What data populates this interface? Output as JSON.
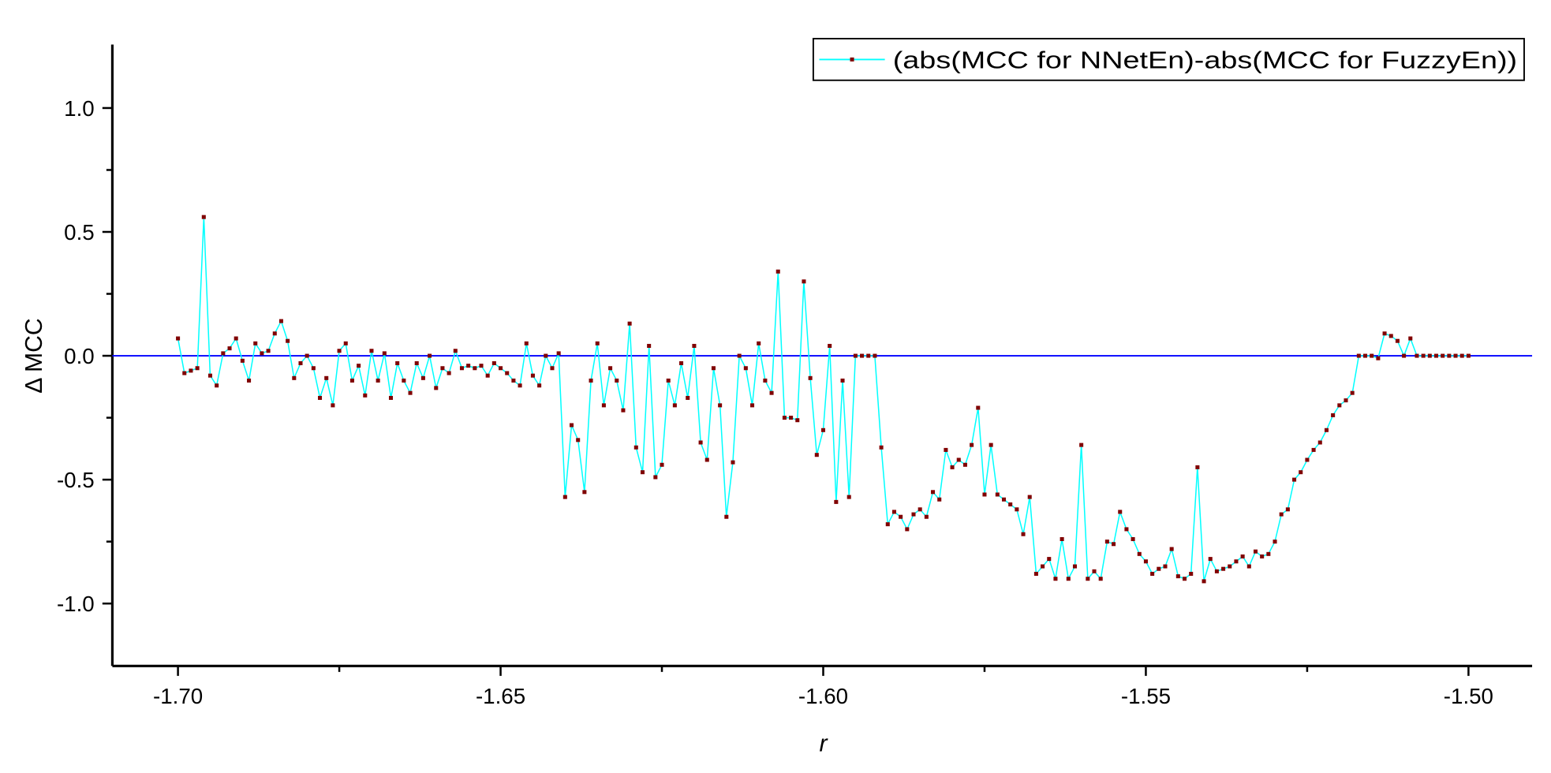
{
  "chart_data": {
    "type": "line",
    "title": "",
    "xlabel": "r",
    "ylabel": "Δ MCC",
    "xlim": [
      -1.71,
      -1.49
    ],
    "ylim": [
      -1.25,
      1.25
    ],
    "xticks": [
      -1.7,
      -1.65,
      -1.6,
      -1.55,
      -1.5
    ],
    "xtick_labels": [
      "-1.70",
      "-1.65",
      "-1.60",
      "-1.55",
      "-1.50"
    ],
    "yticks": [
      -1.0,
      -0.5,
      0.0,
      0.5,
      1.0
    ],
    "ytick_labels": [
      "-1.0",
      "-0.5",
      "0.0",
      "0.5",
      "1.0"
    ],
    "grid": false,
    "legend_position": "top-right",
    "reference_line": {
      "y": 0,
      "color": "#0000ff"
    },
    "series": [
      {
        "name": "(abs(MCC for NNetEn)-abs(MCC for FuzzyEn))",
        "line_color": "#00ffff",
        "marker_color": "#800000",
        "points": [
          [
            -1.7,
            0.07
          ],
          [
            -1.699,
            -0.07
          ],
          [
            -1.698,
            -0.06
          ],
          [
            -1.697,
            -0.05
          ],
          [
            -1.696,
            0.56
          ],
          [
            -1.695,
            -0.08
          ],
          [
            -1.694,
            -0.12
          ],
          [
            -1.693,
            0.01
          ],
          [
            -1.692,
            0.03
          ],
          [
            -1.691,
            0.07
          ],
          [
            -1.69,
            -0.02
          ],
          [
            -1.689,
            -0.1
          ],
          [
            -1.688,
            0.05
          ],
          [
            -1.687,
            0.01
          ],
          [
            -1.686,
            0.02
          ],
          [
            -1.685,
            0.09
          ],
          [
            -1.684,
            0.14
          ],
          [
            -1.683,
            0.06
          ],
          [
            -1.682,
            -0.09
          ],
          [
            -1.681,
            -0.03
          ],
          [
            -1.68,
            0.0
          ],
          [
            -1.679,
            -0.05
          ],
          [
            -1.678,
            -0.17
          ],
          [
            -1.677,
            -0.09
          ],
          [
            -1.676,
            -0.2
          ],
          [
            -1.675,
            0.02
          ],
          [
            -1.674,
            0.05
          ],
          [
            -1.673,
            -0.1
          ],
          [
            -1.672,
            -0.04
          ],
          [
            -1.671,
            -0.16
          ],
          [
            -1.67,
            0.02
          ],
          [
            -1.669,
            -0.1
          ],
          [
            -1.668,
            0.01
          ],
          [
            -1.667,
            -0.17
          ],
          [
            -1.666,
            -0.03
          ],
          [
            -1.665,
            -0.1
          ],
          [
            -1.664,
            -0.15
          ],
          [
            -1.663,
            -0.03
          ],
          [
            -1.662,
            -0.09
          ],
          [
            -1.661,
            0.0
          ],
          [
            -1.66,
            -0.13
          ],
          [
            -1.659,
            -0.05
          ],
          [
            -1.658,
            -0.07
          ],
          [
            -1.657,
            0.02
          ],
          [
            -1.656,
            -0.05
          ],
          [
            -1.655,
            -0.04
          ],
          [
            -1.654,
            -0.05
          ],
          [
            -1.653,
            -0.04
          ],
          [
            -1.652,
            -0.08
          ],
          [
            -1.651,
            -0.03
          ],
          [
            -1.65,
            -0.05
          ],
          [
            -1.649,
            -0.07
          ],
          [
            -1.648,
            -0.1
          ],
          [
            -1.647,
            -0.12
          ],
          [
            -1.646,
            0.05
          ],
          [
            -1.645,
            -0.08
          ],
          [
            -1.644,
            -0.12
          ],
          [
            -1.643,
            0.0
          ],
          [
            -1.642,
            -0.05
          ],
          [
            -1.641,
            0.01
          ],
          [
            -1.64,
            -0.57
          ],
          [
            -1.639,
            -0.28
          ],
          [
            -1.638,
            -0.34
          ],
          [
            -1.637,
            -0.55
          ],
          [
            -1.636,
            -0.1
          ],
          [
            -1.635,
            0.05
          ],
          [
            -1.634,
            -0.2
          ],
          [
            -1.633,
            -0.05
          ],
          [
            -1.632,
            -0.1
          ],
          [
            -1.631,
            -0.22
          ],
          [
            -1.63,
            0.13
          ],
          [
            -1.629,
            -0.37
          ],
          [
            -1.628,
            -0.47
          ],
          [
            -1.627,
            0.04
          ],
          [
            -1.626,
            -0.49
          ],
          [
            -1.625,
            -0.44
          ],
          [
            -1.624,
            -0.1
          ],
          [
            -1.623,
            -0.2
          ],
          [
            -1.622,
            -0.03
          ],
          [
            -1.621,
            -0.17
          ],
          [
            -1.62,
            0.04
          ],
          [
            -1.619,
            -0.35
          ],
          [
            -1.618,
            -0.42
          ],
          [
            -1.617,
            -0.05
          ],
          [
            -1.616,
            -0.2
          ],
          [
            -1.615,
            -0.65
          ],
          [
            -1.614,
            -0.43
          ],
          [
            -1.613,
            0.0
          ],
          [
            -1.612,
            -0.05
          ],
          [
            -1.611,
            -0.2
          ],
          [
            -1.61,
            0.05
          ],
          [
            -1.609,
            -0.1
          ],
          [
            -1.608,
            -0.15
          ],
          [
            -1.607,
            0.34
          ],
          [
            -1.606,
            -0.25
          ],
          [
            -1.605,
            -0.25
          ],
          [
            -1.604,
            -0.26
          ],
          [
            -1.603,
            0.3
          ],
          [
            -1.602,
            -0.09
          ],
          [
            -1.601,
            -0.4
          ],
          [
            -1.6,
            -0.3
          ],
          [
            -1.599,
            0.04
          ],
          [
            -1.598,
            -0.59
          ],
          [
            -1.597,
            -0.1
          ],
          [
            -1.596,
            -0.57
          ],
          [
            -1.595,
            0.0
          ],
          [
            -1.594,
            0.0
          ],
          [
            -1.593,
            0.0
          ],
          [
            -1.592,
            0.0
          ],
          [
            -1.591,
            -0.37
          ],
          [
            -1.59,
            -0.68
          ],
          [
            -1.589,
            -0.63
          ],
          [
            -1.588,
            -0.65
          ],
          [
            -1.587,
            -0.7
          ],
          [
            -1.586,
            -0.64
          ],
          [
            -1.585,
            -0.62
          ],
          [
            -1.584,
            -0.65
          ],
          [
            -1.583,
            -0.55
          ],
          [
            -1.582,
            -0.58
          ],
          [
            -1.581,
            -0.38
          ],
          [
            -1.58,
            -0.45
          ],
          [
            -1.579,
            -0.42
          ],
          [
            -1.578,
            -0.44
          ],
          [
            -1.577,
            -0.36
          ],
          [
            -1.576,
            -0.21
          ],
          [
            -1.575,
            -0.56
          ],
          [
            -1.574,
            -0.36
          ],
          [
            -1.573,
            -0.56
          ],
          [
            -1.572,
            -0.58
          ],
          [
            -1.571,
            -0.6
          ],
          [
            -1.57,
            -0.62
          ],
          [
            -1.569,
            -0.72
          ],
          [
            -1.568,
            -0.57
          ],
          [
            -1.567,
            -0.88
          ],
          [
            -1.566,
            -0.85
          ],
          [
            -1.565,
            -0.82
          ],
          [
            -1.564,
            -0.9
          ],
          [
            -1.563,
            -0.74
          ],
          [
            -1.562,
            -0.9
          ],
          [
            -1.561,
            -0.85
          ],
          [
            -1.56,
            -0.36
          ],
          [
            -1.559,
            -0.9
          ],
          [
            -1.558,
            -0.87
          ],
          [
            -1.557,
            -0.9
          ],
          [
            -1.556,
            -0.75
          ],
          [
            -1.555,
            -0.76
          ],
          [
            -1.554,
            -0.63
          ],
          [
            -1.553,
            -0.7
          ],
          [
            -1.552,
            -0.74
          ],
          [
            -1.551,
            -0.8
          ],
          [
            -1.55,
            -0.83
          ],
          [
            -1.549,
            -0.88
          ],
          [
            -1.548,
            -0.86
          ],
          [
            -1.547,
            -0.85
          ],
          [
            -1.546,
            -0.78
          ],
          [
            -1.545,
            -0.89
          ],
          [
            -1.544,
            -0.9
          ],
          [
            -1.543,
            -0.88
          ],
          [
            -1.542,
            -0.45
          ],
          [
            -1.541,
            -0.91
          ],
          [
            -1.54,
            -0.82
          ],
          [
            -1.539,
            -0.87
          ],
          [
            -1.538,
            -0.86
          ],
          [
            -1.537,
            -0.85
          ],
          [
            -1.536,
            -0.83
          ],
          [
            -1.535,
            -0.81
          ],
          [
            -1.534,
            -0.85
          ],
          [
            -1.533,
            -0.79
          ],
          [
            -1.532,
            -0.81
          ],
          [
            -1.531,
            -0.8
          ],
          [
            -1.53,
            -0.75
          ],
          [
            -1.529,
            -0.64
          ],
          [
            -1.528,
            -0.62
          ],
          [
            -1.527,
            -0.5
          ],
          [
            -1.526,
            -0.47
          ],
          [
            -1.525,
            -0.42
          ],
          [
            -1.524,
            -0.38
          ],
          [
            -1.523,
            -0.35
          ],
          [
            -1.522,
            -0.3
          ],
          [
            -1.521,
            -0.24
          ],
          [
            -1.52,
            -0.2
          ],
          [
            -1.519,
            -0.18
          ],
          [
            -1.518,
            -0.15
          ],
          [
            -1.517,
            0.0
          ],
          [
            -1.516,
            0.0
          ],
          [
            -1.515,
            0.0
          ],
          [
            -1.514,
            -0.01
          ],
          [
            -1.513,
            0.09
          ],
          [
            -1.512,
            0.08
          ],
          [
            -1.511,
            0.06
          ],
          [
            -1.51,
            0.0
          ],
          [
            -1.509,
            0.07
          ],
          [
            -1.508,
            0.0
          ],
          [
            -1.507,
            0.0
          ],
          [
            -1.506,
            0.0
          ],
          [
            -1.505,
            0.0
          ],
          [
            -1.504,
            0.0
          ],
          [
            -1.503,
            0.0
          ],
          [
            -1.502,
            0.0
          ],
          [
            -1.501,
            0.0
          ],
          [
            -1.5,
            0.0
          ]
        ]
      }
    ]
  }
}
